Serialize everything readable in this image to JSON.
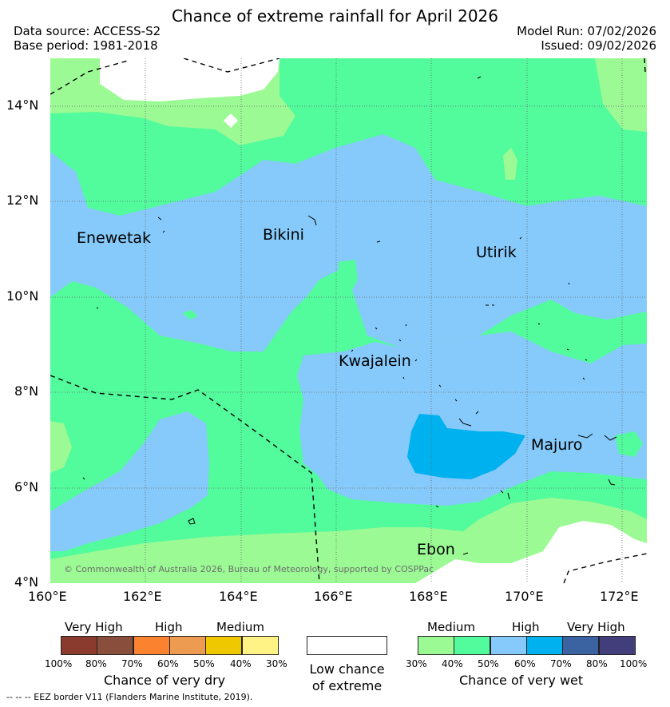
{
  "header": {
    "title": "Chance of extreme rainfall for April 2026",
    "data_source": "Data source: ACCESS-S2",
    "base_period": "Base period: 1981-2018",
    "model_run": "Model Run: 07/02/2026",
    "issued": "Issued: 09/02/2026"
  },
  "map": {
    "latitude_labels": [
      "14°N",
      "12°N",
      "10°N",
      "8°N",
      "6°N",
      "4°N"
    ],
    "longitude_labels": [
      "160°E",
      "162°E",
      "164°E",
      "166°E",
      "168°E",
      "170°E",
      "172°E"
    ],
    "places": [
      "Enewetak",
      "Bikini",
      "Utirik",
      "Kwajalein",
      "Majuro",
      "Ebon"
    ],
    "copyright": "© Commonwealth of Australia 2026, Bureau of Meteorology, supported by COSPPac",
    "colors": {
      "wet_30_40": "#9bfa94",
      "wet_40_50": "#52fb9c",
      "wet_50_60": "#86cafb",
      "wet_60_70": "#00b1ef",
      "low_chance": "#ffffff"
    }
  },
  "legend": {
    "dry": {
      "headers": [
        "Very High",
        "High",
        "Medium"
      ],
      "ticks": [
        "100%",
        "80%",
        "70%",
        "60%",
        "50%",
        "40%",
        "30%"
      ],
      "caption": "Chance of very dry",
      "colors": [
        "#8b3a2e",
        "#8a4e3c",
        "#fb8330",
        "#ec9b50",
        "#f0c800",
        "#fff385"
      ]
    },
    "low": {
      "line1": "Low chance",
      "line2": "of extreme"
    },
    "wet": {
      "headers": [
        "Medium",
        "High",
        "Very High"
      ],
      "ticks": [
        "30%",
        "40%",
        "50%",
        "60%",
        "70%",
        "80%",
        "100%"
      ],
      "caption": "Chance of very wet",
      "colors": [
        "#9bfa94",
        "#52fb9c",
        "#86cafb",
        "#00b1ef",
        "#3b63a2",
        "#413e7b"
      ]
    }
  },
  "footer": {
    "eez": "--  --  -- EEZ border V11 (Flanders Marine Institute, 2019)."
  }
}
